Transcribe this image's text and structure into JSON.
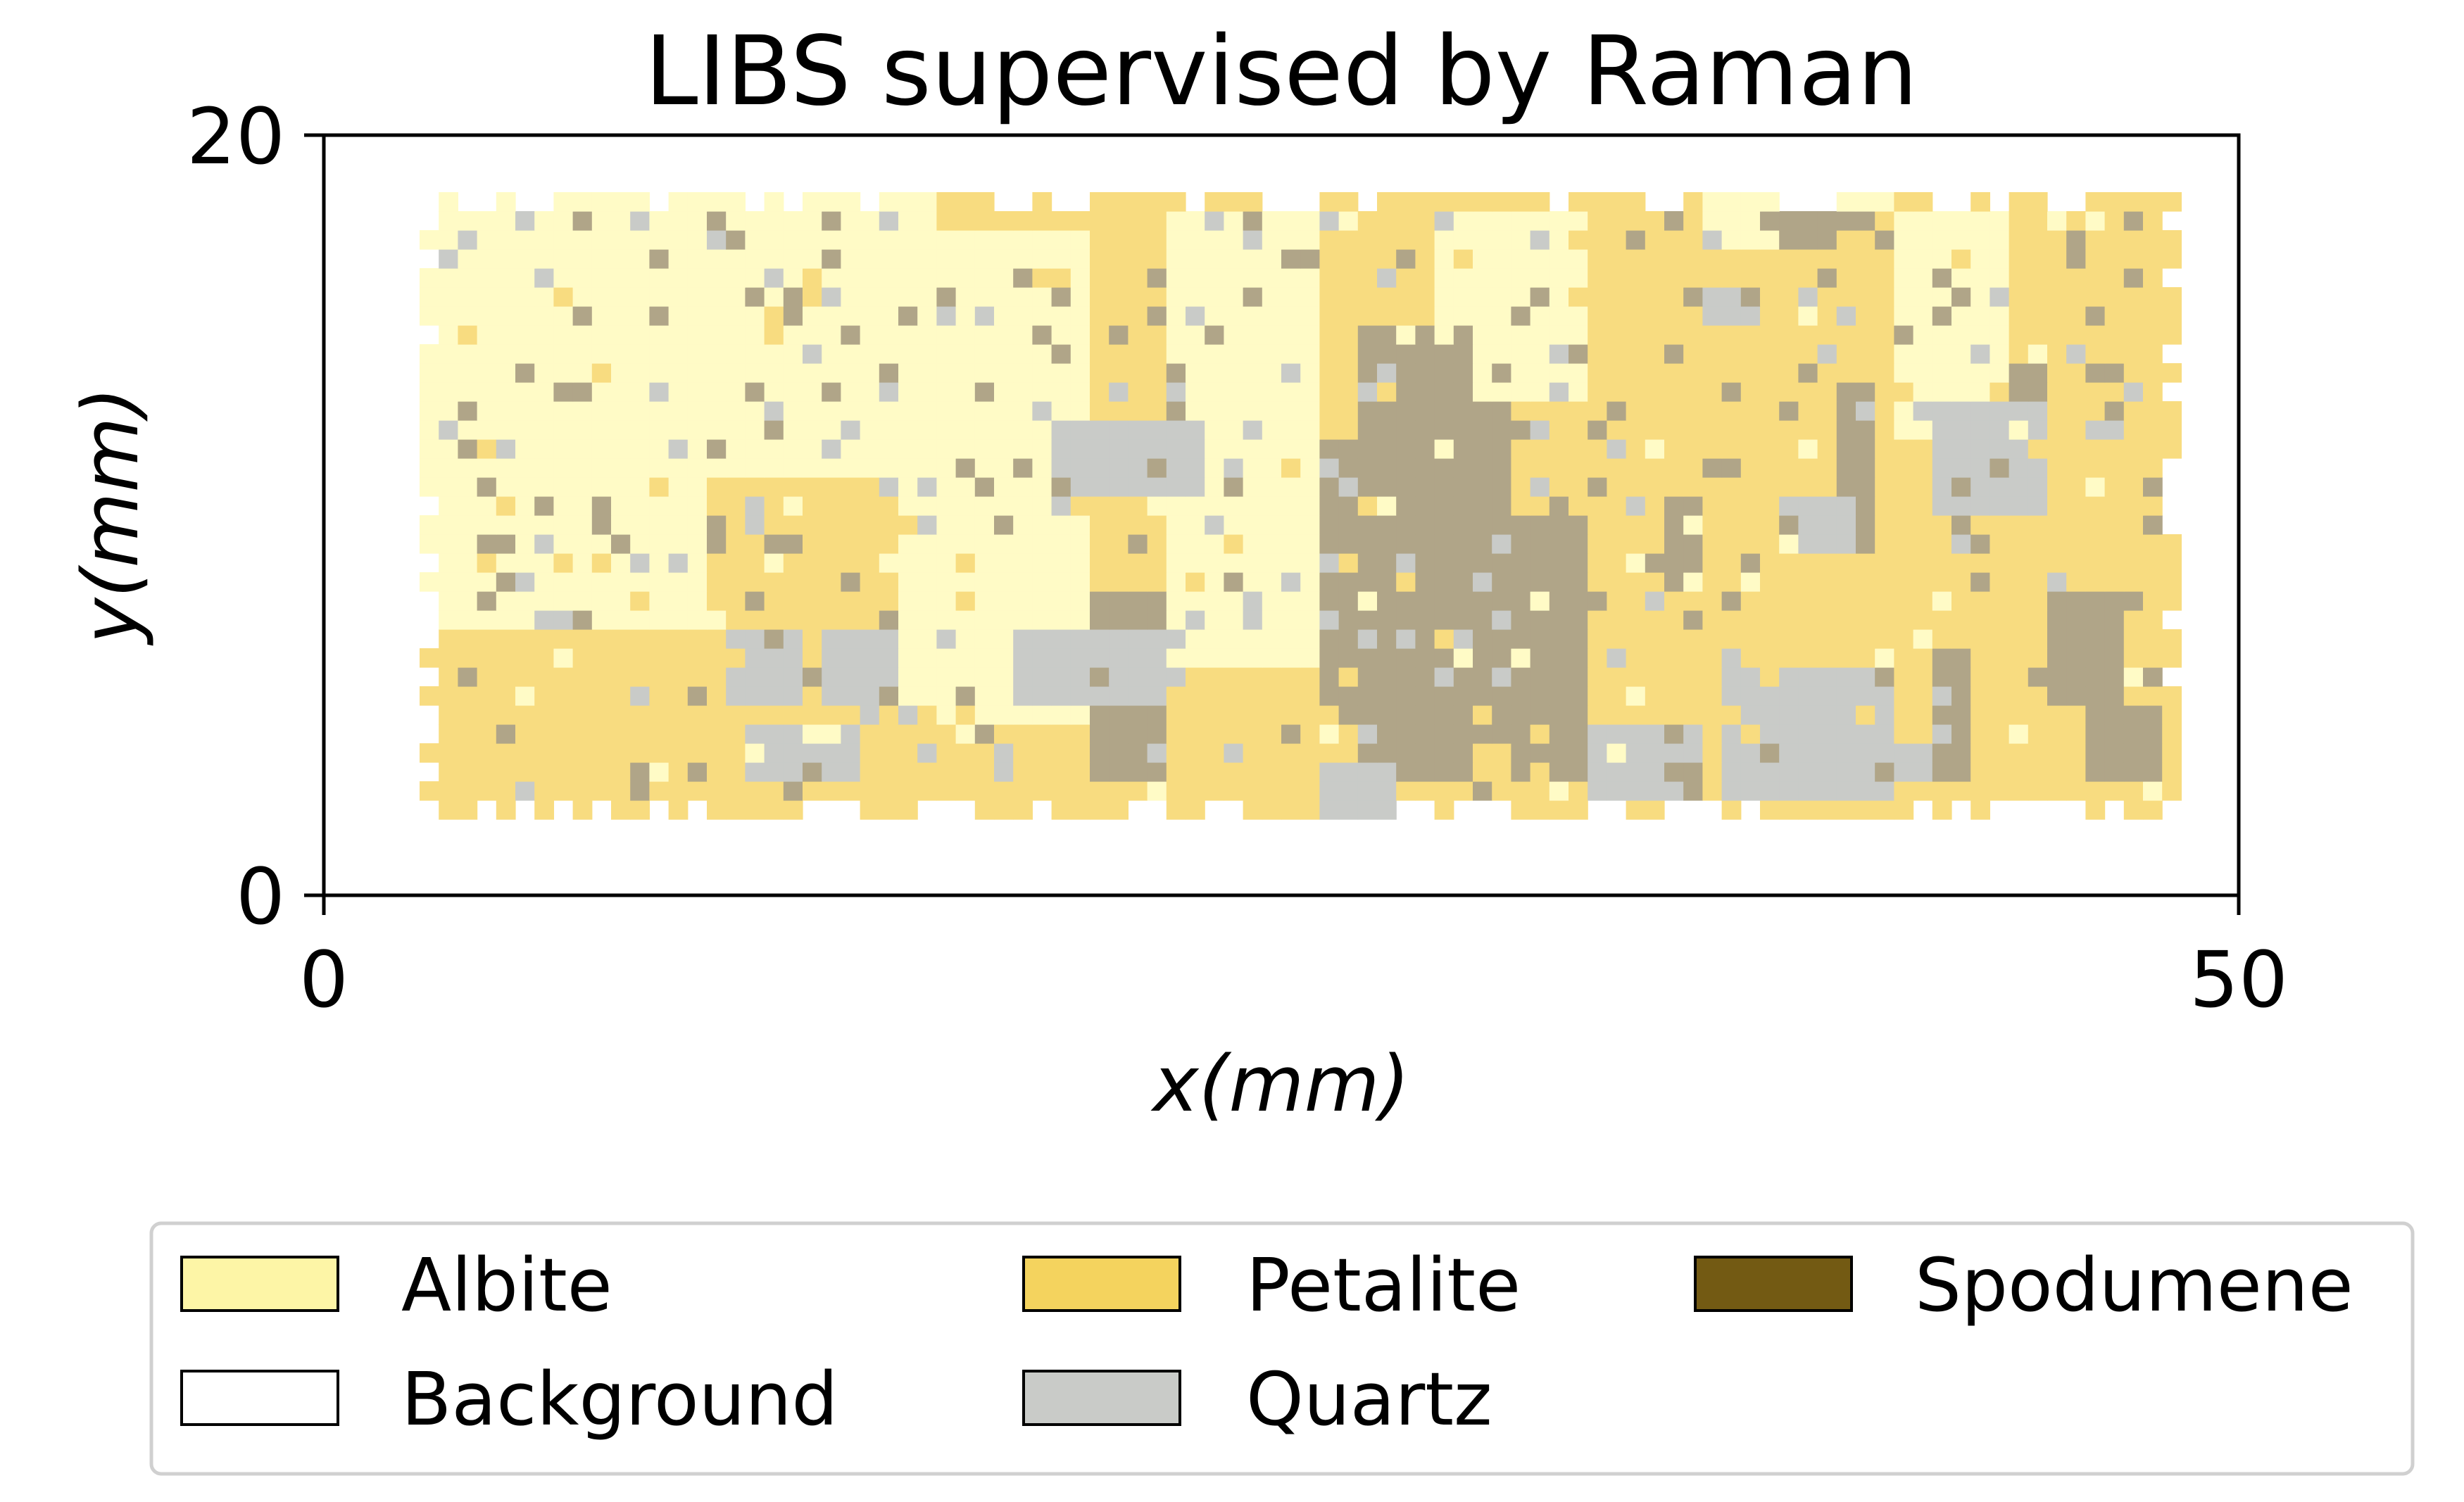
{
  "chart_data": {
    "type": "heatmap",
    "title": "LIBS supervised by Raman",
    "xlabel": "x(mm)",
    "ylabel": "y(mm)",
    "xlim": [
      0,
      50
    ],
    "ylim": [
      0,
      20
    ],
    "xticks": [
      "0",
      "50"
    ],
    "yticks": [
      "0",
      "20"
    ],
    "grid": false,
    "legend_position": "bottom",
    "classes": [
      {
        "name": "Albite",
        "color": "#fdf5a6",
        "map_color": "#fffbc6"
      },
      {
        "name": "Background",
        "color": "#ffffff",
        "map_color": "#ffffff"
      },
      {
        "name": "Petalite",
        "color": "#f4d35e",
        "map_color": "#f8dc80"
      },
      {
        "name": "Quartz",
        "color": "#c9cbc8",
        "map_color": "#c9cbc8"
      },
      {
        "name": "Spodumene",
        "color": "#735a13",
        "map_color": "#b0a588"
      }
    ],
    "map_extent": {
      "x": [
        2.5,
        48.5
      ],
      "y": [
        2,
        18.5
      ]
    },
    "grid_size": {
      "cols": 92,
      "rows": 33
    },
    "regions": [
      {
        "class": "Albite",
        "x": [
          2.5,
          10
        ],
        "y": [
          7,
          18.5
        ]
      },
      {
        "class": "Albite",
        "x": [
          10,
          16
        ],
        "y": [
          11,
          18.5
        ]
      },
      {
        "class": "Albite",
        "x": [
          15,
          20
        ],
        "y": [
          4.5,
          17.5
        ]
      },
      {
        "class": "Albite",
        "x": [
          22,
          26
        ],
        "y": [
          6,
          18
        ]
      },
      {
        "class": "Albite",
        "x": [
          29,
          33
        ],
        "y": [
          13,
          18
        ]
      },
      {
        "class": "Albite",
        "x": [
          41,
          44
        ],
        "y": [
          12,
          18
        ]
      },
      {
        "class": "Albite",
        "x": [
          36,
          41
        ],
        "y": [
          17,
          18.5
        ]
      },
      {
        "class": "Spodumene",
        "x": [
          20,
          22
        ],
        "y": [
          3,
          8
        ]
      },
      {
        "class": "Spodumene",
        "x": [
          26,
          27
        ],
        "y": [
          5,
          12
        ]
      },
      {
        "class": "Spodumene",
        "x": [
          27,
          30
        ],
        "y": [
          3,
          15
        ]
      },
      {
        "class": "Spodumene",
        "x": [
          30,
          31
        ],
        "y": [
          4,
          13
        ]
      },
      {
        "class": "Spodumene",
        "x": [
          31,
          33
        ],
        "y": [
          3,
          10
        ]
      },
      {
        "class": "Spodumene",
        "x": [
          35,
          36
        ],
        "y": [
          8,
          10.5
        ]
      },
      {
        "class": "Spodumene",
        "x": [
          37,
          38.5
        ],
        "y": [
          3,
          6
        ]
      },
      {
        "class": "Spodumene",
        "x": [
          39.5,
          40.5
        ],
        "y": [
          9,
          13.5
        ]
      },
      {
        "class": "Spodumene",
        "x": [
          42,
          43
        ],
        "y": [
          3,
          6.5
        ]
      },
      {
        "class": "Spodumene",
        "x": [
          45,
          47
        ],
        "y": [
          5,
          8
        ]
      },
      {
        "class": "Spodumene",
        "x": [
          46,
          48
        ],
        "y": [
          3,
          5
        ]
      },
      {
        "class": "Spodumene",
        "x": [
          44,
          45
        ],
        "y": [
          12,
          14
        ]
      },
      {
        "class": "Spodumene",
        "x": [
          38,
          41
        ],
        "y": [
          17,
          18
        ]
      },
      {
        "class": "Quartz",
        "x": [
          11,
          14
        ],
        "y": [
          3,
          4.5
        ]
      },
      {
        "class": "Quartz",
        "x": [
          10.5,
          12.5
        ],
        "y": [
          5,
          7
        ]
      },
      {
        "class": "Quartz",
        "x": [
          13,
          15
        ],
        "y": [
          5,
          7
        ]
      },
      {
        "class": "Quartz",
        "x": [
          18,
          22
        ],
        "y": [
          5,
          7
        ]
      },
      {
        "class": "Quartz",
        "x": [
          19,
          23
        ],
        "y": [
          10.5,
          12.5
        ]
      },
      {
        "class": "Quartz",
        "x": [
          33,
          36
        ],
        "y": [
          2.5,
          4.5
        ]
      },
      {
        "class": "Quartz",
        "x": [
          36.5,
          41
        ],
        "y": [
          2.5,
          6
        ]
      },
      {
        "class": "Quartz",
        "x": [
          41,
          42
        ],
        "y": [
          3,
          4
        ]
      },
      {
        "class": "Quartz",
        "x": [
          42,
          45
        ],
        "y": [
          10,
          13
        ]
      },
      {
        "class": "Quartz",
        "x": [
          38,
          40
        ],
        "y": [
          9,
          10.5
        ]
      },
      {
        "class": "Quartz",
        "x": [
          36,
          37.5
        ],
        "y": [
          15,
          16
        ]
      },
      {
        "class": "Quartz",
        "x": [
          26,
          28
        ],
        "y": [
          2,
          3.5
        ]
      }
    ]
  },
  "legend": {
    "items": [
      {
        "label": "Albite",
        "color": "#fdf5a6"
      },
      {
        "label": "Background",
        "color": "#ffffff"
      },
      {
        "label": "Petalite",
        "color": "#f4d35e"
      },
      {
        "label": "Quartz",
        "color": "#c9cbc8"
      },
      {
        "label": "Spodumene",
        "color": "#735a13"
      }
    ]
  }
}
